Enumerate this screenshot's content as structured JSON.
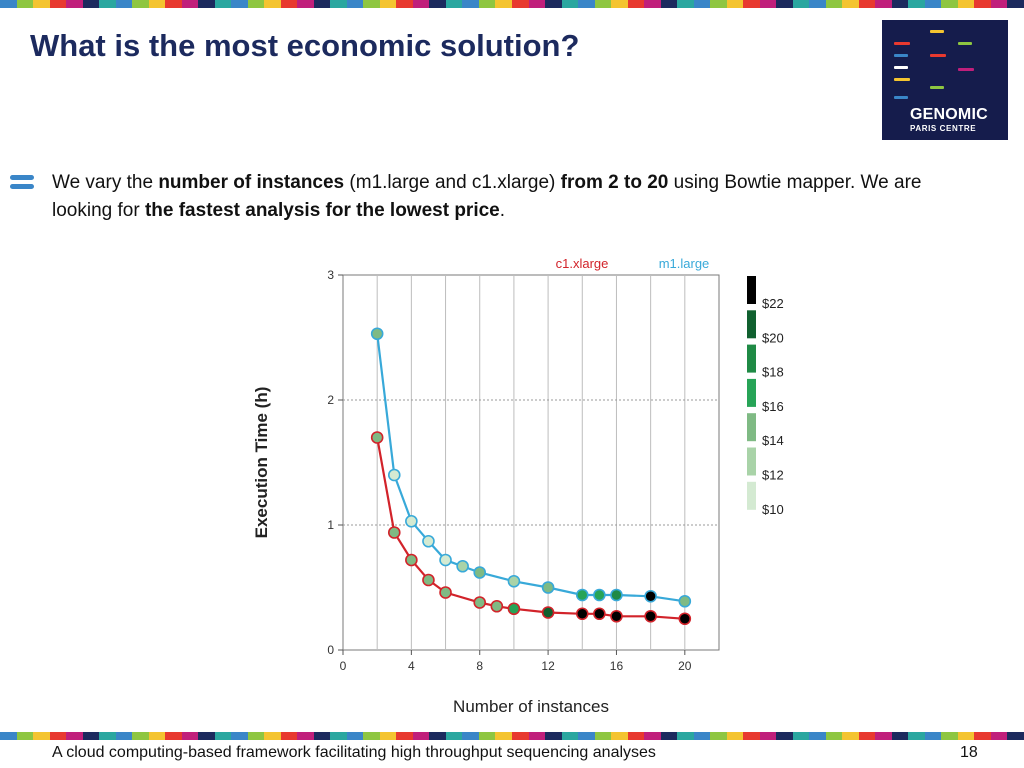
{
  "slide": {
    "title": "What is the most economic solution?",
    "bullet": {
      "t1": "We vary the ",
      "b1": "number of instances",
      "t2": " (m1.large and c1.xlarge) ",
      "b2": "from 2 to 20",
      "t3": " using Bowtie mapper. We are looking for ",
      "b3": "the fastest analysis for the lowest price",
      "t4": "."
    },
    "footer": "A cloud computing-based framework facilitating high throughput sequencing analyses",
    "page_number": "18"
  },
  "logo": {
    "line1": "GENOMIC",
    "line2": "PARIS CENTRE",
    "bar_colors": [
      "#f4c430",
      "#e8392f",
      "#8ec641",
      "#3a86c8",
      "#e8392f",
      "#ffffff",
      "#c01f7b",
      "#f4c430",
      "#8ec641",
      "#3a86c8"
    ]
  },
  "stripe_colors": [
    "#3a86c8",
    "#8ec641",
    "#f4c430",
    "#e8392f",
    "#c01f7b",
    "#1c2a5e",
    "#2aa7a0"
  ],
  "chart_data": {
    "type": "line",
    "xlabel": "Number of instances",
    "ylabel": "Execution Time (h)",
    "xlim": [
      0,
      22
    ],
    "ylim": [
      0,
      3
    ],
    "xticks": [
      0,
      4,
      8,
      12,
      16,
      20
    ],
    "yticks": [
      0,
      1,
      2,
      3
    ],
    "grid": true,
    "legend_position": "top-right",
    "series": [
      {
        "name": "c1.xlarge",
        "color": "#d2232a",
        "x": [
          2,
          3,
          4,
          5,
          6,
          8,
          9,
          10,
          12,
          14,
          15,
          16,
          18,
          20
        ],
        "y": [
          1.7,
          0.94,
          0.72,
          0.56,
          0.46,
          0.38,
          0.35,
          0.33,
          0.3,
          0.29,
          0.29,
          0.27,
          0.27,
          0.25
        ],
        "price": [
          14,
          14,
          14,
          14,
          14,
          14,
          14,
          16,
          20,
          22,
          22,
          22,
          22,
          22
        ]
      },
      {
        "name": "m1.large",
        "color": "#38a9d9",
        "x": [
          2,
          3,
          4,
          5,
          6,
          7,
          8,
          10,
          12,
          14,
          15,
          16,
          18,
          20
        ],
        "y": [
          2.53,
          1.4,
          1.03,
          0.87,
          0.72,
          0.67,
          0.62,
          0.55,
          0.5,
          0.44,
          0.44,
          0.44,
          0.43,
          0.39
        ],
        "price": [
          14,
          10,
          10,
          10,
          10,
          12,
          14,
          12,
          14,
          16,
          16,
          18,
          22,
          14
        ]
      }
    ],
    "price_scale": {
      "labels": [
        "$22",
        "$20",
        "$18",
        "$16",
        "$14",
        "$12",
        "$10"
      ],
      "values": [
        22,
        20,
        18,
        16,
        14,
        12,
        10
      ],
      "colors": [
        "#000000",
        "#10602f",
        "#1f8a45",
        "#27a457",
        "#7fba84",
        "#a9d3a8",
        "#d4ead2"
      ]
    }
  }
}
